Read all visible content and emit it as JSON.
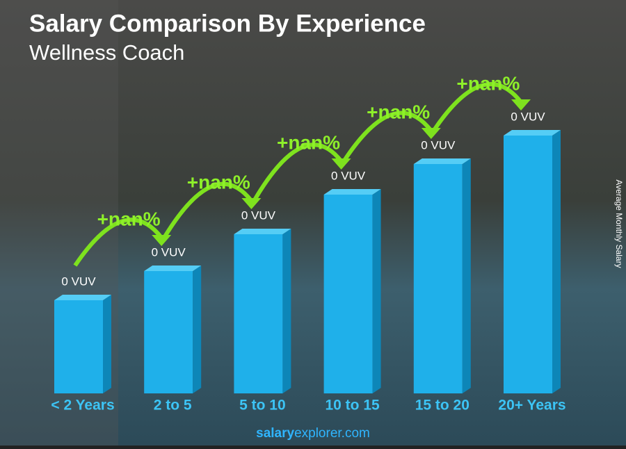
{
  "chart_data": {
    "type": "bar",
    "title": "Salary Comparison By Experience",
    "subtitle": "Wellness Coach",
    "y_label": "Average Monthly Salary",
    "categories": [
      "< 2 Years",
      "2 to 5",
      "5 to 10",
      "10 to 15",
      "15 to 20",
      "20+ Years"
    ],
    "values": [
      0,
      0,
      0,
      0,
      0,
      0
    ],
    "value_labels": [
      "0 VUV",
      "0 VUV",
      "0 VUV",
      "0 VUV",
      "0 VUV",
      "0 VUV"
    ],
    "changes": [
      "+nan%",
      "+nan%",
      "+nan%",
      "+nan%",
      "+nan%"
    ],
    "color": "#1fb0ea",
    "source_parts": [
      "salary",
      "explorer.com"
    ]
  }
}
